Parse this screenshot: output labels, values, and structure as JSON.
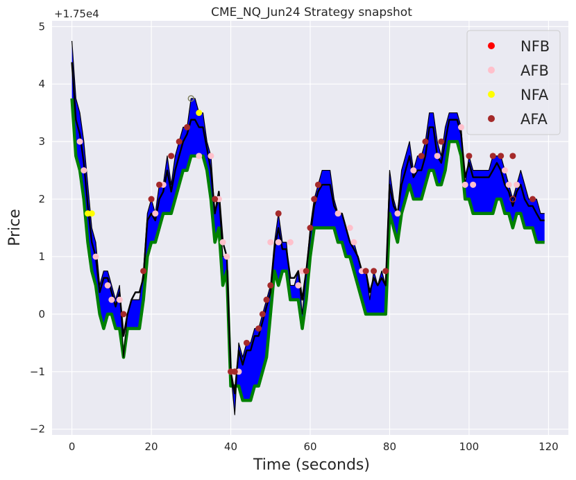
{
  "chart_data": {
    "type": "line",
    "title": "CME_NQ_Jun24 Strategy snapshot",
    "xlabel": "Time (seconds)",
    "ylabel": "Price",
    "offset_text": "+1.75e4",
    "y_offset": 17500,
    "xlim": [
      -5,
      125
    ],
    "ylim": [
      -2.1,
      5.1
    ],
    "x_ticks": [
      0,
      20,
      40,
      60,
      80,
      100,
      120
    ],
    "y_ticks": [
      -2,
      -1,
      0,
      1,
      2,
      3,
      4,
      5
    ],
    "y_tick_labels": [
      "−2",
      "−1",
      "0",
      "1",
      "2",
      "3",
      "4",
      "5"
    ],
    "grid": true,
    "legend_position": "top-right",
    "legend": [
      {
        "label": "NFB",
        "color": "#ff0000"
      },
      {
        "label": "AFB",
        "color": "#ffc0cb"
      },
      {
        "label": "NFA",
        "color": "#ffff00"
      },
      {
        "label": "AFA",
        "color": "#a52a2a"
      }
    ],
    "colors": {
      "band": "#0000ff",
      "lower_line": "#008000",
      "mid_line": "#000000",
      "background": "#eaeaf2",
      "grid": "#ffffff"
    },
    "x": [
      0,
      1,
      2,
      3,
      4,
      5,
      6,
      7,
      8,
      9,
      10,
      11,
      12,
      13,
      14,
      15,
      16,
      17,
      18,
      19,
      20,
      21,
      22,
      23,
      24,
      25,
      26,
      27,
      28,
      29,
      30,
      31,
      32,
      33,
      34,
      35,
      36,
      37,
      38,
      39,
      40,
      41,
      42,
      43,
      44,
      45,
      46,
      47,
      48,
      49,
      50,
      51,
      52,
      53,
      54,
      55,
      56,
      57,
      58,
      59,
      60,
      61,
      62,
      63,
      64,
      65,
      66,
      67,
      68,
      69,
      70,
      71,
      72,
      73,
      74,
      75,
      76,
      77,
      78,
      79,
      80,
      81,
      82,
      83,
      84,
      85,
      86,
      87,
      88,
      89,
      90,
      91,
      92,
      93,
      94,
      95,
      96,
      97,
      98,
      99,
      100,
      101,
      102,
      103,
      104,
      105,
      106,
      107,
      108,
      109,
      110,
      111,
      112,
      113,
      114,
      115,
      116,
      117,
      118,
      119
    ],
    "series": [
      {
        "values": [
          4.75,
          3.75,
          3.5,
          3.0,
          2.25,
          1.5,
          1.25,
          0.5,
          0.75,
          0.75,
          0.5,
          0.25,
          0.5,
          -0.75,
          0.0,
          0.25,
          0.25,
          0.25,
          0.75,
          1.75,
          2.0,
          1.75,
          2.25,
          2.25,
          2.75,
          2.25,
          2.75,
          3.0,
          3.25,
          3.25,
          3.75,
          3.75,
          3.5,
          3.5,
          3.0,
          2.75,
          1.75,
          2.0,
          1.0,
          1.0,
          -1.0,
          -1.75,
          -0.5,
          -0.75,
          -0.5,
          -0.5,
          -0.25,
          -0.25,
          0.0,
          0.25,
          0.5,
          1.25,
          1.75,
          1.25,
          1.25,
          0.5,
          0.5,
          0.75,
          0.0,
          0.75,
          1.5,
          2.0,
          2.25,
          2.5,
          2.5,
          2.5,
          2.0,
          1.75,
          1.75,
          1.5,
          1.25,
          1.25,
          1.0,
          0.75,
          0.75,
          0.25,
          0.75,
          0.5,
          0.75,
          0.5,
          2.5,
          2.0,
          1.75,
          2.5,
          2.75,
          3.0,
          2.5,
          2.75,
          2.75,
          3.0,
          3.5,
          3.5,
          3.0,
          2.75,
          3.25,
          3.5,
          3.5,
          3.5,
          3.25,
          2.25,
          2.75,
          2.5,
          2.5,
          2.5,
          2.5,
          2.5,
          2.75,
          2.75,
          2.75,
          2.5,
          2.25,
          2.0,
          2.25,
          2.5,
          2.25,
          2.0,
          2.0,
          2.0,
          1.75,
          1.75
        ]
      },
      {
        "values": [
          4.38,
          3.38,
          3.13,
          2.63,
          1.88,
          1.25,
          1.0,
          0.38,
          0.63,
          0.63,
          0.38,
          0.13,
          0.38,
          -0.38,
          0.0,
          0.25,
          0.38,
          0.38,
          0.63,
          1.63,
          1.75,
          1.63,
          2.0,
          2.13,
          2.5,
          2.13,
          2.5,
          2.75,
          3.0,
          3.13,
          3.38,
          3.38,
          3.25,
          3.25,
          2.88,
          2.5,
          1.75,
          2.13,
          1.25,
          1.0,
          -1.0,
          -1.38,
          -0.63,
          -0.88,
          -0.63,
          -0.63,
          -0.38,
          -0.38,
          -0.13,
          0.13,
          0.38,
          1.13,
          1.5,
          1.13,
          1.13,
          0.63,
          0.63,
          0.75,
          0.25,
          0.75,
          1.38,
          1.88,
          2.13,
          2.25,
          2.25,
          2.25,
          1.88,
          1.75,
          1.75,
          1.5,
          1.25,
          1.13,
          1.0,
          0.75,
          0.75,
          0.38,
          0.63,
          0.5,
          0.63,
          0.5,
          2.25,
          1.88,
          1.75,
          2.25,
          2.5,
          2.75,
          2.38,
          2.5,
          2.5,
          2.75,
          3.25,
          3.25,
          2.75,
          2.63,
          3.0,
          3.38,
          3.38,
          3.38,
          3.13,
          2.38,
          2.63,
          2.38,
          2.38,
          2.38,
          2.38,
          2.38,
          2.5,
          2.63,
          2.5,
          2.25,
          2.13,
          1.88,
          2.13,
          2.25,
          2.0,
          1.88,
          1.88,
          1.75,
          1.63,
          1.63
        ]
      },
      {
        "values": [
          4.0,
          3.0,
          2.75,
          2.25,
          1.5,
          1.0,
          0.75,
          0.25,
          0.0,
          0.25,
          0.25,
          0.0,
          0.0,
          -0.5,
          0.0,
          0.0,
          0.0,
          0.0,
          0.5,
          1.25,
          1.5,
          1.5,
          1.75,
          2.0,
          2.0,
          2.0,
          2.25,
          2.5,
          2.75,
          2.75,
          3.0,
          3.0,
          3.0,
          3.0,
          2.75,
          2.25,
          1.5,
          1.75,
          0.75,
          1.0,
          -1.0,
          -1.75,
          -1.0,
          -1.25,
          -1.25,
          -1.25,
          -1.0,
          -1.0,
          -0.75,
          -0.5,
          0.25,
          1.0,
          0.75,
          1.0,
          1.0,
          0.5,
          0.5,
          0.5,
          0.0,
          0.5,
          1.25,
          1.75,
          1.75,
          1.75,
          1.75,
          1.75,
          1.75,
          1.5,
          1.5,
          1.25,
          1.25,
          1.0,
          0.75,
          0.5,
          0.25,
          0.25,
          0.25,
          0.25,
          0.25,
          0.25,
          2.0,
          1.75,
          1.5,
          2.0,
          2.25,
          2.5,
          2.25,
          2.25,
          2.25,
          2.5,
          2.75,
          2.75,
          2.5,
          2.5,
          2.75,
          3.25,
          3.25,
          3.25,
          3.0,
          2.25,
          2.25,
          2.0,
          2.0,
          2.0,
          2.0,
          2.0,
          2.0,
          2.25,
          2.25,
          2.0,
          2.0,
          1.75,
          2.0,
          2.0,
          1.75,
          1.75,
          1.75,
          1.5,
          1.5,
          1.5
        ]
      },
      {
        "values": [
          3.75,
          2.75,
          2.5,
          2.0,
          1.25,
          0.75,
          0.5,
          0.0,
          -0.25,
          0.0,
          0.0,
          -0.25,
          -0.25,
          -0.75,
          -0.25,
          -0.25,
          -0.25,
          -0.25,
          0.25,
          1.0,
          1.25,
          1.25,
          1.5,
          1.75,
          1.75,
          1.75,
          2.0,
          2.25,
          2.5,
          2.5,
          2.75,
          2.75,
          2.75,
          2.75,
          2.5,
          2.0,
          1.25,
          1.5,
          0.5,
          0.75,
          -1.25,
          -1.25,
          -1.25,
          -1.5,
          -1.5,
          -1.5,
          -1.25,
          -1.25,
          -1.0,
          -0.75,
          0.0,
          0.75,
          0.5,
          0.75,
          0.75,
          0.25,
          0.25,
          0.25,
          -0.25,
          0.25,
          1.0,
          1.5,
          1.5,
          1.5,
          1.5,
          1.5,
          1.5,
          1.25,
          1.25,
          1.0,
          1.0,
          0.75,
          0.5,
          0.25,
          0.0,
          0.0,
          0.0,
          0.0,
          0.0,
          0.0,
          1.75,
          1.5,
          1.25,
          1.75,
          2.0,
          2.25,
          2.0,
          2.0,
          2.0,
          2.25,
          2.5,
          2.5,
          2.25,
          2.25,
          2.5,
          3.0,
          3.0,
          3.0,
          2.75,
          2.0,
          2.0,
          1.75,
          1.75,
          1.75,
          1.75,
          1.75,
          1.75,
          2.0,
          2.0,
          1.75,
          1.75,
          1.5,
          1.75,
          1.75,
          1.5,
          1.5,
          1.5,
          1.25,
          1.25,
          1.25
        ]
      }
    ],
    "scatter": {
      "AFB": {
        "x": [
          2,
          3,
          6,
          9,
          10,
          12,
          21,
          23,
          32,
          35,
          37,
          38,
          39,
          40,
          42,
          50,
          52,
          55,
          57,
          58,
          67,
          70,
          71,
          73,
          82,
          86,
          92,
          98,
          99,
          101,
          109,
          110,
          112
        ],
        "y": [
          3.0,
          2.5,
          1.0,
          0.5,
          0.25,
          0.25,
          1.75,
          2.25,
          2.75,
          2.75,
          2.0,
          1.25,
          1.0,
          -1.0,
          -1.0,
          1.25,
          1.25,
          1.25,
          0.5,
          0.75,
          1.75,
          1.5,
          1.25,
          0.75,
          1.75,
          2.5,
          2.75,
          3.25,
          2.25,
          2.25,
          2.5,
          2.25,
          2.25
        ]
      },
      "NFA": {
        "x": [
          4,
          5,
          32
        ],
        "y": [
          1.75,
          1.75,
          3.5
        ]
      },
      "AFA": {
        "x": [
          13,
          18,
          20,
          22,
          25,
          27,
          29,
          36,
          40,
          41,
          44,
          47,
          48,
          49,
          50,
          52,
          59,
          60,
          61,
          62,
          74,
          76,
          79,
          88,
          89,
          93,
          100,
          106,
          108,
          111,
          116
        ],
        "y": [
          0.0,
          0.75,
          2.0,
          2.25,
          2.75,
          3.0,
          3.25,
          2.0,
          -1.0,
          -1.0,
          -0.5,
          -0.25,
          0.0,
          0.25,
          0.5,
          1.75,
          0.75,
          1.5,
          2.0,
          2.25,
          0.75,
          0.75,
          0.75,
          2.75,
          3.0,
          3.0,
          2.75,
          2.75,
          2.75,
          2.75,
          2.0
        ]
      },
      "open_markers": [
        {
          "x": 30,
          "y": 3.75,
          "color": "#808060"
        },
        {
          "x": 111,
          "y": 2.0,
          "color": "#a52a2a"
        }
      ]
    }
  }
}
